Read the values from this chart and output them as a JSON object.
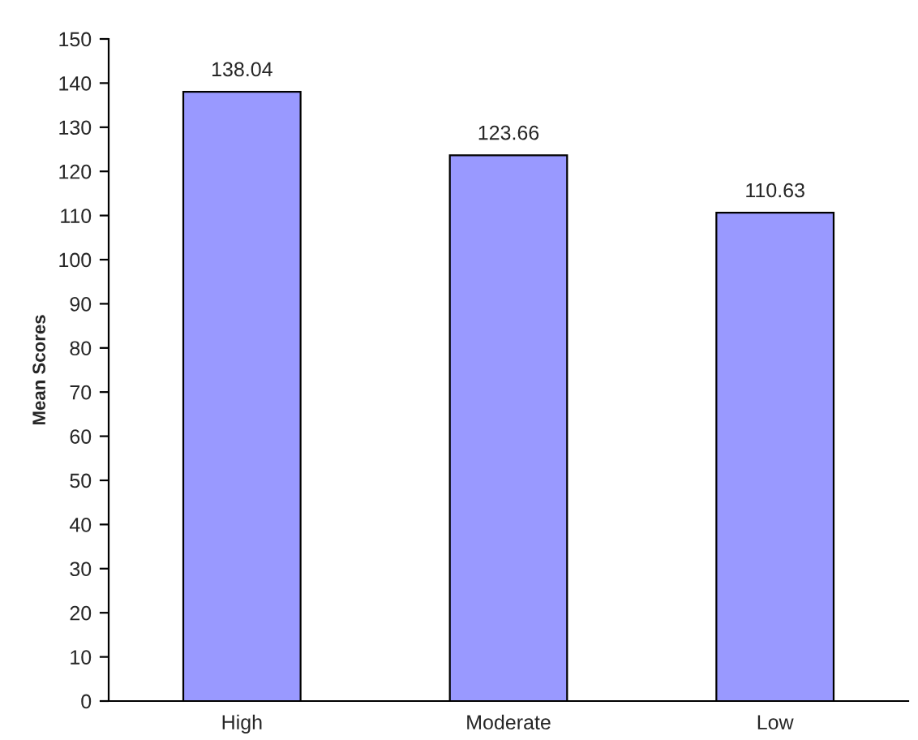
{
  "chart_data": {
    "type": "bar",
    "ylabel": "Mean Scores",
    "categories": [
      "High",
      "Moderate",
      "Low"
    ],
    "values": [
      138.04,
      123.66,
      110.63
    ],
    "color": "#9999ff",
    "ylim": [
      0,
      150
    ],
    "yticks": [
      0,
      10,
      20,
      30,
      40,
      50,
      60,
      70,
      80,
      90,
      100,
      110,
      120,
      130,
      140,
      150
    ],
    "data_labels": true,
    "grid": false,
    "legend": false
  }
}
